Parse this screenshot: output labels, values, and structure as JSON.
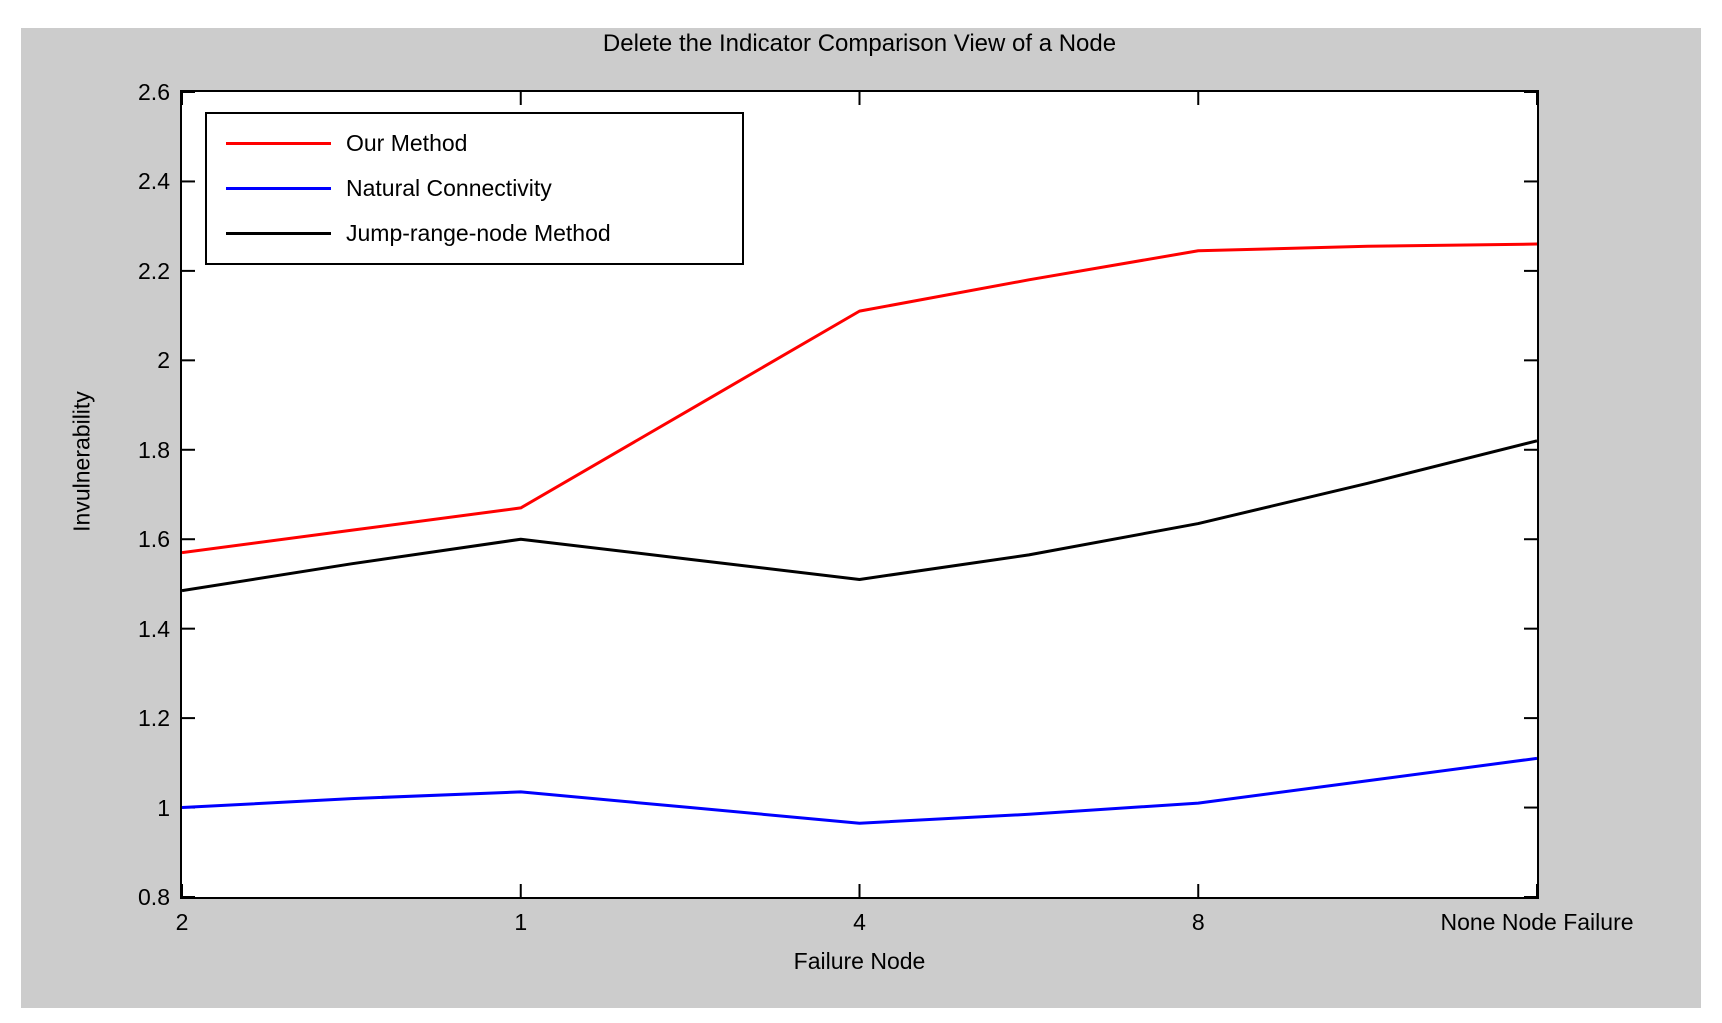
{
  "colors": {
    "figure_background": "#cccccc",
    "plot_background": "#ffffff",
    "axis": "#000000"
  },
  "chart_data": {
    "type": "line",
    "title": "Delete the Indicator Comparison View of a Node",
    "xlabel": "Failure Node",
    "ylabel": "Invulnerability",
    "xlim": [
      0,
      4
    ],
    "ylim": [
      0.8,
      2.6
    ],
    "grid": false,
    "legend_position": "top-left",
    "x_tick_positions": [
      0,
      1,
      2,
      3,
      4
    ],
    "x_tick_labels": [
      "2",
      "1",
      "4",
      "8",
      "None Node Failure"
    ],
    "y_tick_positions": [
      0.8,
      1.0,
      1.2,
      1.4,
      1.6,
      1.8,
      2.0,
      2.2,
      2.4,
      2.6
    ],
    "y_tick_labels": [
      "0.8",
      "1",
      "1.2",
      "1.4",
      "1.6",
      "1.8",
      "2",
      "2.2",
      "2.4",
      "2.6"
    ],
    "x": [
      0,
      0.5,
      1,
      1.5,
      2,
      2.5,
      3,
      3.5,
      4
    ],
    "series": [
      {
        "name": "Our Method",
        "color": "#ff0000",
        "values": [
          1.57,
          1.62,
          1.67,
          1.89,
          2.11,
          2.18,
          2.245,
          2.255,
          2.26
        ]
      },
      {
        "name": "Natural Connectivity",
        "color": "#0000ff",
        "values": [
          1.0,
          1.02,
          1.035,
          1.0,
          0.965,
          0.985,
          1.01,
          1.06,
          1.11
        ]
      },
      {
        "name": "Jump-range-node Method",
        "color": "#000000",
        "values": [
          1.485,
          1.545,
          1.6,
          1.555,
          1.51,
          1.565,
          1.635,
          1.725,
          1.82
        ]
      }
    ]
  }
}
